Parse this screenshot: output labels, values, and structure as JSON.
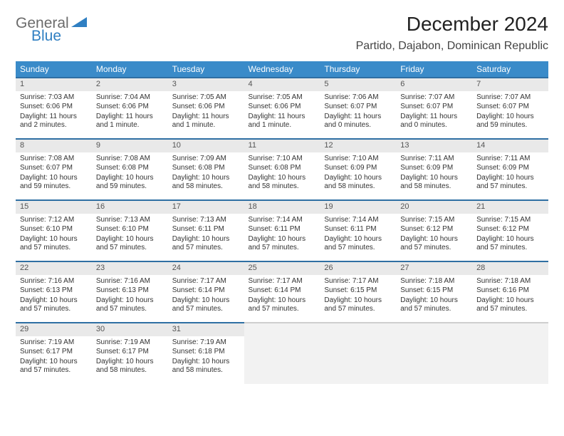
{
  "logo": {
    "word1": "General",
    "word2": "Blue",
    "tri_color": "#2f7fc2",
    "word1_color": "#6b6b6b",
    "word2_color": "#2f7fc2"
  },
  "title": "December 2024",
  "location": "Partido, Dajabon, Dominican Republic",
  "colors": {
    "header_bg": "#3a8bc9",
    "header_text": "#ffffff",
    "row_divider": "#2f6fa3",
    "daynum_bg": "#e9e9e9",
    "body_text": "#333333",
    "empty_bg": "#f2f2f2"
  },
  "dayHeaders": [
    "Sunday",
    "Monday",
    "Tuesday",
    "Wednesday",
    "Thursday",
    "Friday",
    "Saturday"
  ],
  "weeks": [
    [
      {
        "n": "1",
        "sr": "Sunrise: 7:03 AM",
        "ss": "Sunset: 6:06 PM",
        "dl": "Daylight: 11 hours and 2 minutes."
      },
      {
        "n": "2",
        "sr": "Sunrise: 7:04 AM",
        "ss": "Sunset: 6:06 PM",
        "dl": "Daylight: 11 hours and 1 minute."
      },
      {
        "n": "3",
        "sr": "Sunrise: 7:05 AM",
        "ss": "Sunset: 6:06 PM",
        "dl": "Daylight: 11 hours and 1 minute."
      },
      {
        "n": "4",
        "sr": "Sunrise: 7:05 AM",
        "ss": "Sunset: 6:06 PM",
        "dl": "Daylight: 11 hours and 1 minute."
      },
      {
        "n": "5",
        "sr": "Sunrise: 7:06 AM",
        "ss": "Sunset: 6:07 PM",
        "dl": "Daylight: 11 hours and 0 minutes."
      },
      {
        "n": "6",
        "sr": "Sunrise: 7:07 AM",
        "ss": "Sunset: 6:07 PM",
        "dl": "Daylight: 11 hours and 0 minutes."
      },
      {
        "n": "7",
        "sr": "Sunrise: 7:07 AM",
        "ss": "Sunset: 6:07 PM",
        "dl": "Daylight: 10 hours and 59 minutes."
      }
    ],
    [
      {
        "n": "8",
        "sr": "Sunrise: 7:08 AM",
        "ss": "Sunset: 6:07 PM",
        "dl": "Daylight: 10 hours and 59 minutes."
      },
      {
        "n": "9",
        "sr": "Sunrise: 7:08 AM",
        "ss": "Sunset: 6:08 PM",
        "dl": "Daylight: 10 hours and 59 minutes."
      },
      {
        "n": "10",
        "sr": "Sunrise: 7:09 AM",
        "ss": "Sunset: 6:08 PM",
        "dl": "Daylight: 10 hours and 58 minutes."
      },
      {
        "n": "11",
        "sr": "Sunrise: 7:10 AM",
        "ss": "Sunset: 6:08 PM",
        "dl": "Daylight: 10 hours and 58 minutes."
      },
      {
        "n": "12",
        "sr": "Sunrise: 7:10 AM",
        "ss": "Sunset: 6:09 PM",
        "dl": "Daylight: 10 hours and 58 minutes."
      },
      {
        "n": "13",
        "sr": "Sunrise: 7:11 AM",
        "ss": "Sunset: 6:09 PM",
        "dl": "Daylight: 10 hours and 58 minutes."
      },
      {
        "n": "14",
        "sr": "Sunrise: 7:11 AM",
        "ss": "Sunset: 6:09 PM",
        "dl": "Daylight: 10 hours and 57 minutes."
      }
    ],
    [
      {
        "n": "15",
        "sr": "Sunrise: 7:12 AM",
        "ss": "Sunset: 6:10 PM",
        "dl": "Daylight: 10 hours and 57 minutes."
      },
      {
        "n": "16",
        "sr": "Sunrise: 7:13 AM",
        "ss": "Sunset: 6:10 PM",
        "dl": "Daylight: 10 hours and 57 minutes."
      },
      {
        "n": "17",
        "sr": "Sunrise: 7:13 AM",
        "ss": "Sunset: 6:11 PM",
        "dl": "Daylight: 10 hours and 57 minutes."
      },
      {
        "n": "18",
        "sr": "Sunrise: 7:14 AM",
        "ss": "Sunset: 6:11 PM",
        "dl": "Daylight: 10 hours and 57 minutes."
      },
      {
        "n": "19",
        "sr": "Sunrise: 7:14 AM",
        "ss": "Sunset: 6:11 PM",
        "dl": "Daylight: 10 hours and 57 minutes."
      },
      {
        "n": "20",
        "sr": "Sunrise: 7:15 AM",
        "ss": "Sunset: 6:12 PM",
        "dl": "Daylight: 10 hours and 57 minutes."
      },
      {
        "n": "21",
        "sr": "Sunrise: 7:15 AM",
        "ss": "Sunset: 6:12 PM",
        "dl": "Daylight: 10 hours and 57 minutes."
      }
    ],
    [
      {
        "n": "22",
        "sr": "Sunrise: 7:16 AM",
        "ss": "Sunset: 6:13 PM",
        "dl": "Daylight: 10 hours and 57 minutes."
      },
      {
        "n": "23",
        "sr": "Sunrise: 7:16 AM",
        "ss": "Sunset: 6:13 PM",
        "dl": "Daylight: 10 hours and 57 minutes."
      },
      {
        "n": "24",
        "sr": "Sunrise: 7:17 AM",
        "ss": "Sunset: 6:14 PM",
        "dl": "Daylight: 10 hours and 57 minutes."
      },
      {
        "n": "25",
        "sr": "Sunrise: 7:17 AM",
        "ss": "Sunset: 6:14 PM",
        "dl": "Daylight: 10 hours and 57 minutes."
      },
      {
        "n": "26",
        "sr": "Sunrise: 7:17 AM",
        "ss": "Sunset: 6:15 PM",
        "dl": "Daylight: 10 hours and 57 minutes."
      },
      {
        "n": "27",
        "sr": "Sunrise: 7:18 AM",
        "ss": "Sunset: 6:15 PM",
        "dl": "Daylight: 10 hours and 57 minutes."
      },
      {
        "n": "28",
        "sr": "Sunrise: 7:18 AM",
        "ss": "Sunset: 6:16 PM",
        "dl": "Daylight: 10 hours and 57 minutes."
      }
    ],
    [
      {
        "n": "29",
        "sr": "Sunrise: 7:19 AM",
        "ss": "Sunset: 6:17 PM",
        "dl": "Daylight: 10 hours and 57 minutes."
      },
      {
        "n": "30",
        "sr": "Sunrise: 7:19 AM",
        "ss": "Sunset: 6:17 PM",
        "dl": "Daylight: 10 hours and 58 minutes."
      },
      {
        "n": "31",
        "sr": "Sunrise: 7:19 AM",
        "ss": "Sunset: 6:18 PM",
        "dl": "Daylight: 10 hours and 58 minutes."
      },
      null,
      null,
      null,
      null
    ]
  ]
}
